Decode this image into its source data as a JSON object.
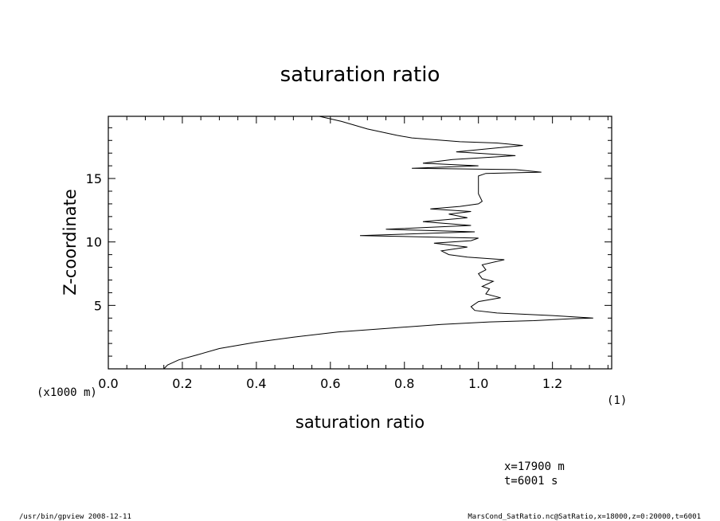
{
  "chart_data": {
    "type": "line",
    "title": "saturation ratio",
    "xlabel": "saturation ratio",
    "ylabel": "Z-coordinate",
    "x_unit": "(1)",
    "y_unit": "(x1000 m)",
    "xlim": [
      0.0,
      1.36
    ],
    "ylim": [
      0.0,
      19.9
    ],
    "x_ticks": [
      "0.0",
      "0.2",
      "0.4",
      "0.6",
      "0.8",
      "1.0",
      "1.2"
    ],
    "y_ticks": [
      "5",
      "10",
      "15"
    ],
    "grid": false,
    "series": [
      {
        "x": [
          0.15,
          0.16,
          0.19,
          0.24,
          0.3,
          0.4,
          0.5,
          0.62,
          0.76,
          0.9,
          1.03,
          1.15,
          1.25,
          1.31,
          1.2,
          1.05,
          0.99,
          0.98,
          1.0,
          1.06,
          1.02,
          1.03,
          1.01,
          1.04,
          1.01,
          1.0,
          1.02,
          1.01,
          1.07,
          0.97,
          0.92,
          0.9,
          0.97,
          0.88,
          0.98,
          1.0,
          0.68,
          0.99,
          0.75,
          0.98,
          0.85,
          0.97,
          0.92,
          0.98,
          0.87,
          0.95,
          1.0,
          1.01,
          1.0,
          1.0,
          1.0,
          1.02,
          1.17,
          1.1,
          0.82,
          1.0,
          0.85,
          0.93,
          1.1,
          0.94,
          1.12,
          1.05,
          0.95,
          0.82,
          0.78,
          0.7,
          0.63,
          0.57
        ],
        "y": [
          0.0,
          0.3,
          0.7,
          1.1,
          1.6,
          2.1,
          2.5,
          2.9,
          3.2,
          3.5,
          3.7,
          3.8,
          3.95,
          4.0,
          4.2,
          4.4,
          4.6,
          4.9,
          5.3,
          5.6,
          5.9,
          6.3,
          6.5,
          6.9,
          7.1,
          7.5,
          7.8,
          8.2,
          8.6,
          8.8,
          9.0,
          9.3,
          9.6,
          9.9,
          10.1,
          10.3,
          10.5,
          10.8,
          11.0,
          11.3,
          11.6,
          11.9,
          12.2,
          12.4,
          12.6,
          12.8,
          13.0,
          13.2,
          13.8,
          14.3,
          15.2,
          15.4,
          15.5,
          15.7,
          15.8,
          16.0,
          16.2,
          16.5,
          16.8,
          17.1,
          17.6,
          17.8,
          17.9,
          18.2,
          18.4,
          18.9,
          19.5,
          19.9
        ]
      }
    ]
  },
  "footer": {
    "left": "/usr/bin/gpview   2008-12-11",
    "right": "MarsCond_SatRatio.nc@SatRatio,x=18000,z=0:20000,t=6001"
  },
  "annotations": {
    "x_info": "x=17900  m",
    "t_info": "t=6001  s"
  }
}
